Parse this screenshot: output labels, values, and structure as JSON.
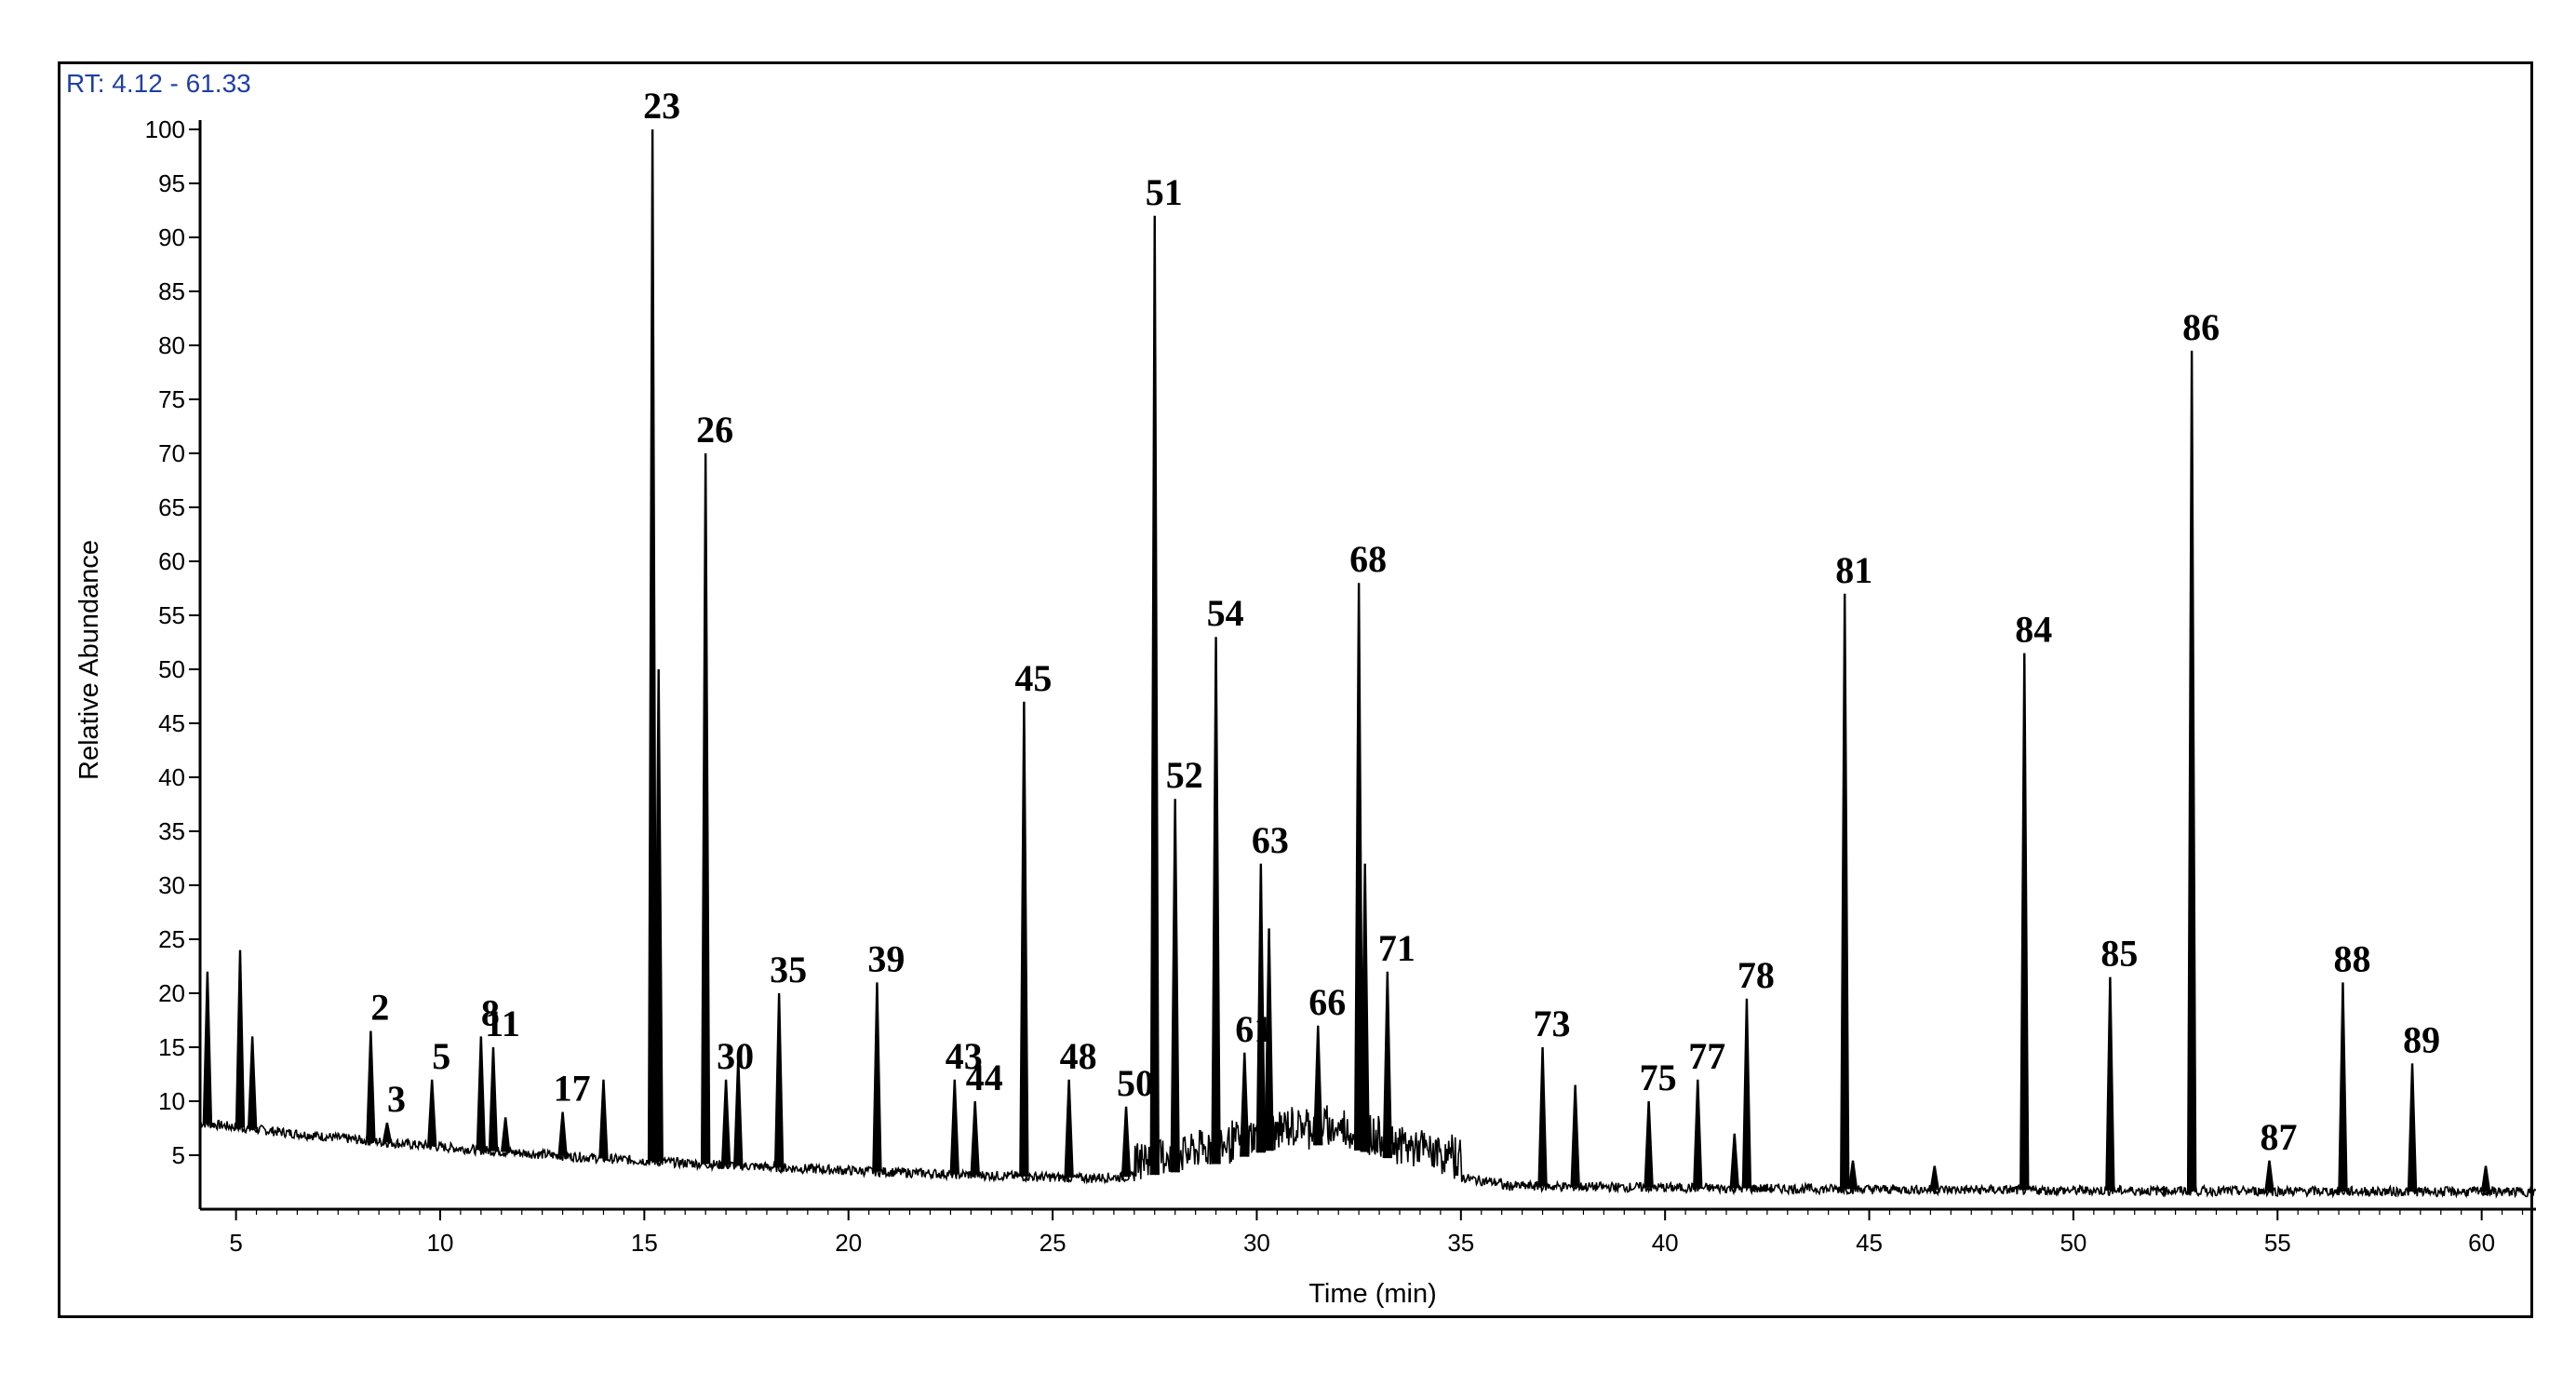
{
  "chart_data": {
    "type": "line",
    "rt_label": "RT: 4.12 - 61.33",
    "xlabel": "Time (min)",
    "ylabel": "Relative Abundance",
    "xlim": [
      4.12,
      61.33
    ],
    "ylim": [
      0,
      100
    ],
    "x_ticks": [
      5,
      10,
      15,
      20,
      25,
      30,
      35,
      40,
      45,
      50,
      55,
      60
    ],
    "y_ticks": [
      5,
      10,
      15,
      20,
      25,
      30,
      35,
      40,
      45,
      50,
      55,
      60,
      65,
      70,
      75,
      80,
      85,
      90,
      95,
      100
    ],
    "peaks": [
      {
        "label": "",
        "x": 4.3,
        "y": 22
      },
      {
        "label": "",
        "x": 5.1,
        "y": 24
      },
      {
        "label": "",
        "x": 5.4,
        "y": 16
      },
      {
        "label": "2",
        "x": 8.3,
        "y": 16.5
      },
      {
        "label": "3",
        "x": 8.7,
        "y": 8
      },
      {
        "label": "5",
        "x": 9.8,
        "y": 12
      },
      {
        "label": "8",
        "x": 11.0,
        "y": 16
      },
      {
        "label": "11",
        "x": 11.3,
        "y": 15
      },
      {
        "label": "",
        "x": 11.6,
        "y": 8.5
      },
      {
        "label": "17",
        "x": 13.0,
        "y": 9
      },
      {
        "label": "",
        "x": 14.0,
        "y": 12
      },
      {
        "label": "23",
        "x": 15.2,
        "y": 100
      },
      {
        "label": "",
        "x": 15.35,
        "y": 50
      },
      {
        "label": "26",
        "x": 16.5,
        "y": 70
      },
      {
        "label": "30",
        "x": 17.0,
        "y": 12
      },
      {
        "label": "",
        "x": 17.3,
        "y": 14
      },
      {
        "label": "35",
        "x": 18.3,
        "y": 20
      },
      {
        "label": "39",
        "x": 20.7,
        "y": 21
      },
      {
        "label": "43",
        "x": 22.6,
        "y": 12
      },
      {
        "label": "44",
        "x": 23.1,
        "y": 10
      },
      {
        "label": "45",
        "x": 24.3,
        "y": 47
      },
      {
        "label": "48",
        "x": 25.4,
        "y": 12
      },
      {
        "label": "50",
        "x": 26.8,
        "y": 9.5
      },
      {
        "label": "51",
        "x": 27.5,
        "y": 92
      },
      {
        "label": "52",
        "x": 28.0,
        "y": 38
      },
      {
        "label": "54",
        "x": 29.0,
        "y": 53
      },
      {
        "label": "61",
        "x": 29.7,
        "y": 14.5
      },
      {
        "label": "63",
        "x": 30.1,
        "y": 32
      },
      {
        "label": "",
        "x": 30.3,
        "y": 26
      },
      {
        "label": "66",
        "x": 31.5,
        "y": 17
      },
      {
        "label": "68",
        "x": 32.5,
        "y": 58
      },
      {
        "label": "",
        "x": 32.65,
        "y": 32
      },
      {
        "label": "71",
        "x": 33.2,
        "y": 22
      },
      {
        "label": "73",
        "x": 37.0,
        "y": 15
      },
      {
        "label": "",
        "x": 37.8,
        "y": 11.5
      },
      {
        "label": "75",
        "x": 39.6,
        "y": 10
      },
      {
        "label": "77",
        "x": 40.8,
        "y": 12
      },
      {
        "label": "",
        "x": 41.7,
        "y": 7
      },
      {
        "label": "78",
        "x": 42.0,
        "y": 19.5
      },
      {
        "label": "81",
        "x": 44.4,
        "y": 57
      },
      {
        "label": "",
        "x": 44.6,
        "y": 4.5
      },
      {
        "label": "",
        "x": 46.6,
        "y": 4
      },
      {
        "label": "84",
        "x": 48.8,
        "y": 51.5
      },
      {
        "label": "85",
        "x": 50.9,
        "y": 21.5
      },
      {
        "label": "",
        "x": 52.2,
        "y": 2
      },
      {
        "label": "86",
        "x": 52.9,
        "y": 79.5
      },
      {
        "label": "87",
        "x": 54.8,
        "y": 4.5
      },
      {
        "label": "88",
        "x": 56.6,
        "y": 21
      },
      {
        "label": "89",
        "x": 58.3,
        "y": 13.5
      },
      {
        "label": "",
        "x": 60.1,
        "y": 4
      }
    ]
  },
  "colors": {
    "axis": "#000000",
    "trace": "#000000",
    "rt_text": "#1f3fa8"
  }
}
